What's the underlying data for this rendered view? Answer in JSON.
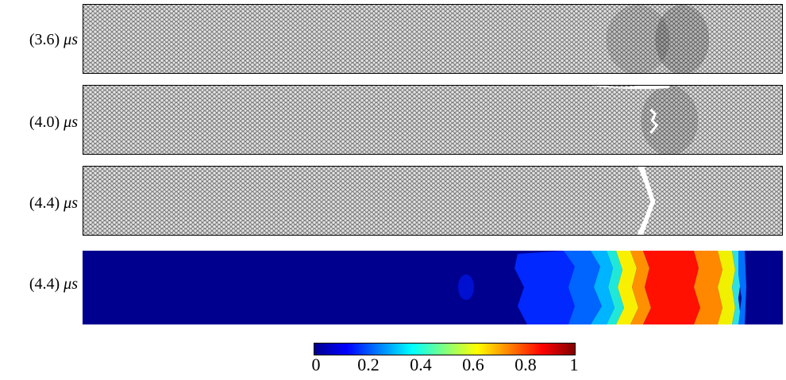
{
  "panels": [
    {
      "time": "(3.6)",
      "unit": "μs",
      "kind": "mesh"
    },
    {
      "time": "(4.0)",
      "unit": "μs",
      "kind": "mesh"
    },
    {
      "time": "(4.4)",
      "unit": "μs",
      "kind": "mesh"
    },
    {
      "time": "(4.4)",
      "unit": "μs",
      "kind": "field"
    }
  ],
  "colorbar": {
    "ticks": [
      "0",
      "0.2",
      "0.4",
      "0.6",
      "0.8",
      "1"
    ],
    "min": 0,
    "max": 1,
    "colormap": "jet"
  },
  "colors": {
    "mesh_fill": "#b9b9b9",
    "mesh_edge": "#5c5c5c",
    "crack": "#ffffff",
    "field_background": "#00008f"
  }
}
